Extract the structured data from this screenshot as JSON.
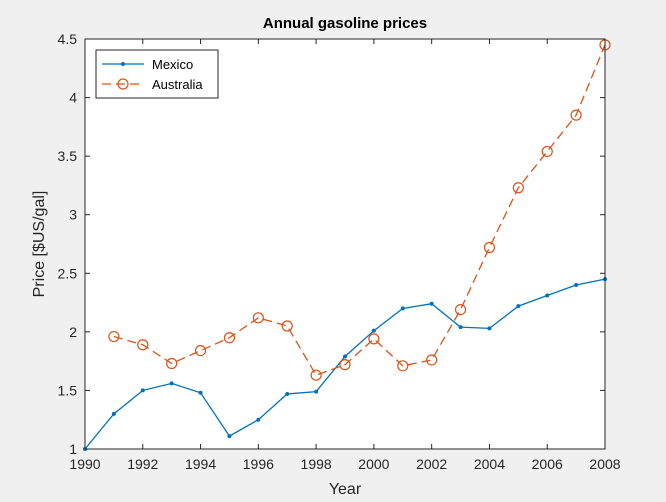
{
  "chart_data": {
    "type": "line",
    "title": "Annual gasoline prices",
    "xlabel": "Year",
    "ylabel": "Price [$US/gal]",
    "xlim": [
      1990,
      2008
    ],
    "ylim": [
      1,
      4.5
    ],
    "xticks": [
      1990,
      1992,
      1994,
      1996,
      1998,
      2000,
      2002,
      2004,
      2006,
      2008
    ],
    "yticks": [
      1,
      1.5,
      2,
      2.5,
      3,
      3.5,
      4,
      4.5
    ],
    "legend_position": "top-left",
    "grid": false,
    "series": [
      {
        "name": "Mexico",
        "color": "#0072bd",
        "line_style": "solid",
        "marker": "dot",
        "x": [
          1990,
          1991,
          1992,
          1993,
          1994,
          1995,
          1996,
          1997,
          1998,
          1999,
          2000,
          2001,
          2002,
          2003,
          2004,
          2005,
          2006,
          2007,
          2008
        ],
        "values": [
          1.0,
          1.3,
          1.5,
          1.56,
          1.48,
          1.11,
          1.25,
          1.47,
          1.49,
          1.79,
          2.01,
          2.2,
          2.24,
          2.04,
          2.03,
          2.22,
          2.31,
          2.4,
          2.45
        ]
      },
      {
        "name": "Australia",
        "color": "#d95319",
        "line_style": "dashed",
        "marker": "circle",
        "x": [
          1991,
          1992,
          1993,
          1994,
          1995,
          1996,
          1997,
          1998,
          1999,
          2000,
          2001,
          2002,
          2003,
          2004,
          2005,
          2006,
          2007,
          2008
        ],
        "values": [
          1.96,
          1.89,
          1.73,
          1.84,
          1.95,
          2.12,
          2.05,
          1.63,
          1.72,
          1.94,
          1.71,
          1.76,
          2.19,
          2.72,
          3.23,
          3.54,
          3.85,
          4.45
        ]
      }
    ]
  }
}
